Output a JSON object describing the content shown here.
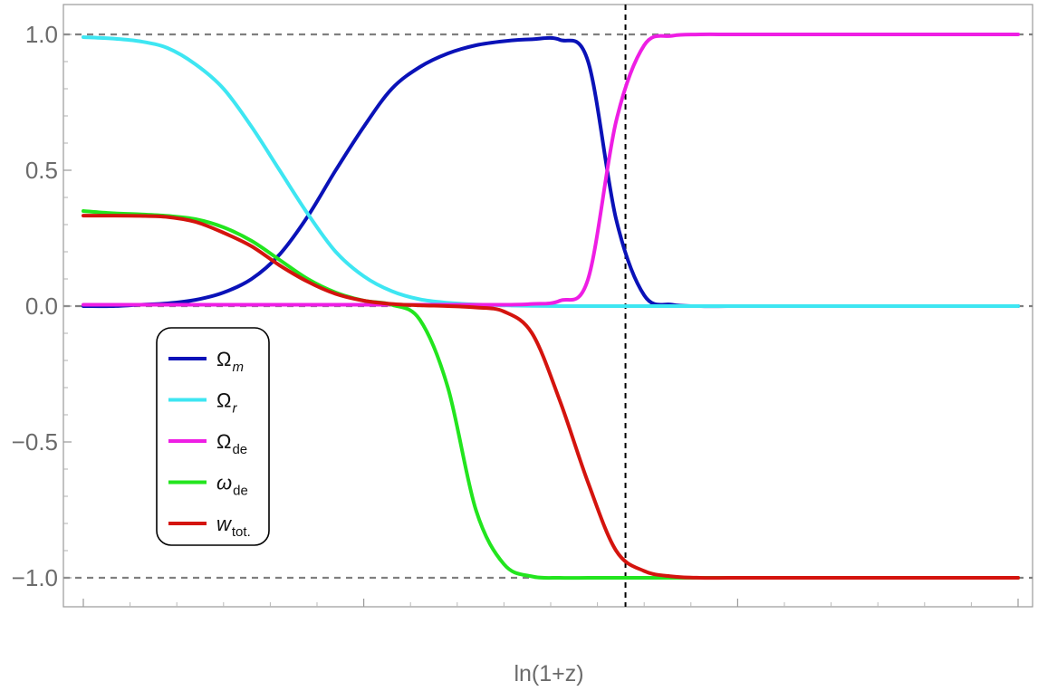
{
  "chart_data": {
    "type": "line",
    "title": "",
    "xlabel": "ln(1+z)",
    "ylabel": "",
    "ylim": [
      -1.1,
      1.1
    ],
    "x_ticks_labeled": false,
    "y_ticks": [
      {
        "value": 1.0,
        "label": "1.0"
      },
      {
        "value": 0.5,
        "label": "0.5"
      },
      {
        "value": 0.0,
        "label": "0.0"
      },
      {
        "value": -0.5,
        "label": "−0.5"
      },
      {
        "value": -1.0,
        "label": "−1.0"
      }
    ],
    "reference_lines": [
      {
        "orientation": "horizontal",
        "y": 1.0,
        "style": "dashed",
        "color": "#7f7f7f"
      },
      {
        "orientation": "horizontal",
        "y": 0.0,
        "style": "dashed",
        "color": "#7f7f7f"
      },
      {
        "orientation": "horizontal",
        "y": -1.0,
        "style": "dashed",
        "color": "#7f7f7f"
      },
      {
        "orientation": "vertical",
        "x": 0.58,
        "style": "dashed",
        "color": "#000000"
      }
    ],
    "x": [
      0.0,
      0.03,
      0.06,
      0.09,
      0.12,
      0.15,
      0.18,
      0.21,
      0.24,
      0.27,
      0.3,
      0.33,
      0.36,
      0.39,
      0.42,
      0.45,
      0.48,
      0.51,
      0.54,
      0.57,
      0.6,
      0.63,
      0.66,
      0.69,
      0.72,
      0.75,
      0.78,
      0.81,
      0.84,
      0.87,
      0.9,
      0.93,
      0.96,
      0.99,
      1.0
    ],
    "series": [
      {
        "name": "Ωm",
        "color": "#0a12b8",
        "values": [
          0.0,
          0.0,
          0.005,
          0.01,
          0.023,
          0.05,
          0.1,
          0.19,
          0.33,
          0.5,
          0.66,
          0.8,
          0.88,
          0.93,
          0.96,
          0.975,
          0.982,
          0.98,
          0.9,
          0.32,
          0.04,
          0.005,
          0.0,
          0.0,
          0.0,
          0.0,
          0.0,
          0.0,
          0.0,
          0.0,
          0.0,
          0.0,
          0.0,
          0.0,
          0.0
        ]
      },
      {
        "name": "Ωr",
        "color": "#3ee6f2",
        "values": [
          0.99,
          0.985,
          0.975,
          0.95,
          0.89,
          0.8,
          0.66,
          0.5,
          0.34,
          0.2,
          0.11,
          0.055,
          0.025,
          0.012,
          0.006,
          0.003,
          0.001,
          0.0,
          0.0,
          0.0,
          0.0,
          0.0,
          0.0,
          0.0,
          0.0,
          0.0,
          0.0,
          0.0,
          0.0,
          0.0,
          0.0,
          0.0,
          0.0,
          0.0,
          0.0
        ]
      },
      {
        "name": "Ωde",
        "color": "#ee1ee4",
        "values": [
          0.005,
          0.005,
          0.005,
          0.005,
          0.005,
          0.005,
          0.005,
          0.005,
          0.005,
          0.005,
          0.005,
          0.005,
          0.005,
          0.005,
          0.005,
          0.005,
          0.008,
          0.02,
          0.1,
          0.68,
          0.96,
          0.995,
          1.0,
          1.0,
          1.0,
          1.0,
          1.0,
          1.0,
          1.0,
          1.0,
          1.0,
          1.0,
          1.0,
          1.0,
          1.0
        ]
      },
      {
        "name": "ωde",
        "color": "#22e51e",
        "values": [
          0.35,
          0.342,
          0.338,
          0.332,
          0.32,
          0.29,
          0.24,
          0.17,
          0.1,
          0.05,
          0.02,
          0.005,
          -0.05,
          -0.3,
          -0.75,
          -0.95,
          -0.995,
          -1.0,
          -1.0,
          -1.0,
          -1.0,
          -1.0,
          -1.0,
          -1.0,
          -1.0,
          -1.0,
          -1.0,
          -1.0,
          -1.0,
          -1.0,
          -1.0,
          -1.0,
          -1.0,
          -1.0,
          -1.0
        ]
      },
      {
        "name": "wtot.",
        "color": "#d4140e",
        "values": [
          0.333,
          0.333,
          0.332,
          0.328,
          0.31,
          0.27,
          0.22,
          0.15,
          0.09,
          0.045,
          0.02,
          0.008,
          0.003,
          0.0,
          -0.005,
          -0.02,
          -0.1,
          -0.35,
          -0.65,
          -0.9,
          -0.975,
          -0.995,
          -1.0,
          -1.0,
          -1.0,
          -1.0,
          -1.0,
          -1.0,
          -1.0,
          -1.0,
          -1.0,
          -1.0,
          -1.0,
          -1.0,
          -1.0
        ]
      }
    ],
    "legend": {
      "placement": "left-center",
      "entries": [
        {
          "symbol": "Ω",
          "sub": "m",
          "italic_sub": true,
          "color": "#0a12b8"
        },
        {
          "symbol": "Ω",
          "sub": "r",
          "italic_sub": true,
          "color": "#3ee6f2"
        },
        {
          "symbol": "Ω",
          "sub": "de",
          "italic_sub": false,
          "color": "#ee1ee4"
        },
        {
          "symbol": "ω",
          "sub": "de",
          "italic_sub": false,
          "italic_symbol": true,
          "color": "#22e51e"
        },
        {
          "symbol": "w",
          "sub": "tot.",
          "italic_sub": false,
          "italic_symbol": true,
          "color": "#d4140e"
        }
      ]
    },
    "grid": false
  }
}
